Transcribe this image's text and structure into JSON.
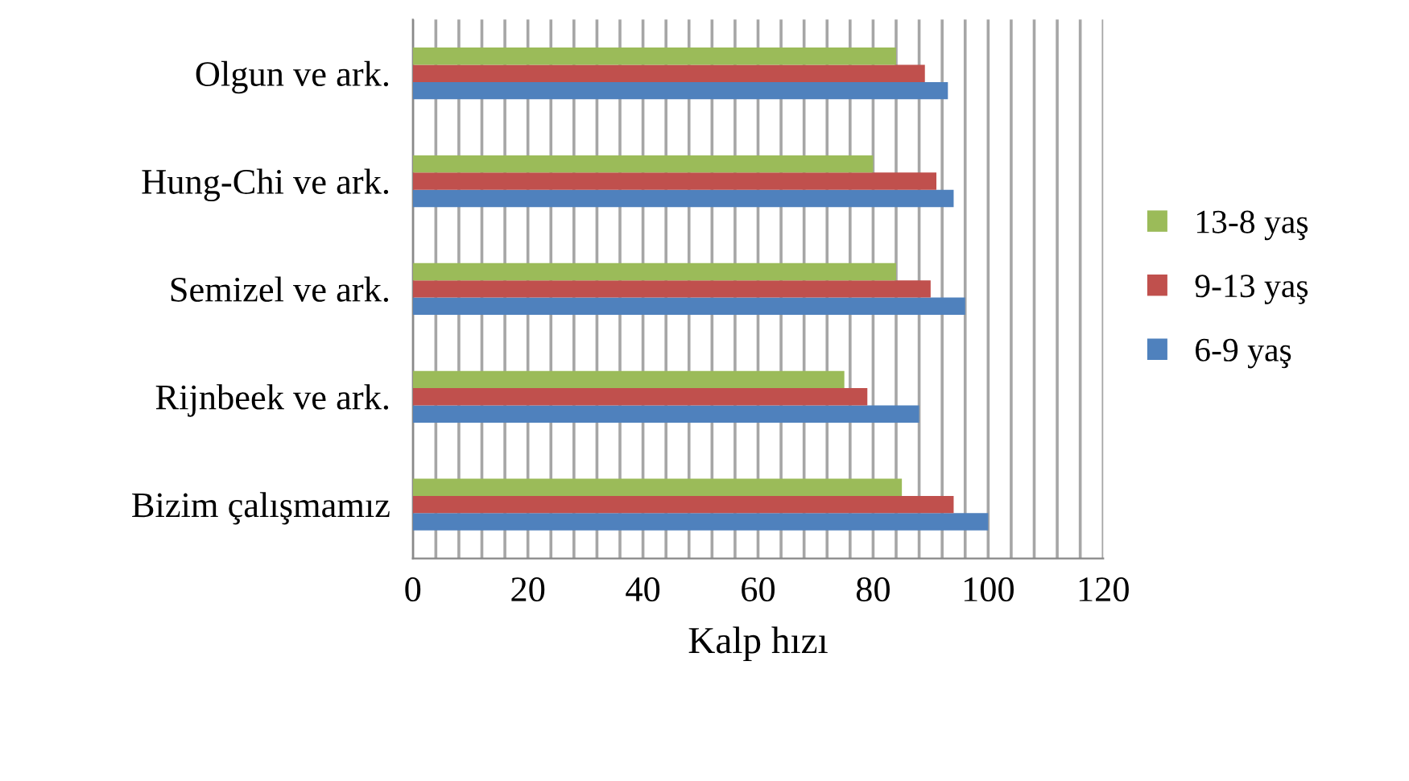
{
  "chart_data": {
    "type": "bar",
    "orientation": "horizontal",
    "xlabel": "Kalp hızı",
    "categories": [
      "Olgun ve ark.",
      "Hung-Chi ve ark.",
      "Semizel ve ark.",
      "Rijnbeek ve ark.",
      "Bizim çalışmamız"
    ],
    "series": [
      {
        "name": "6-9 yaş",
        "color": "#4f81bd",
        "values": [
          93,
          94,
          96,
          88,
          100
        ]
      },
      {
        "name": "9-13 yaş",
        "color": "#c0504d",
        "values": [
          89,
          91,
          90,
          79,
          94
        ]
      },
      {
        "name": "13-8 yaş",
        "color": "#9bbb59",
        "values": [
          84,
          80,
          84,
          75,
          85
        ]
      }
    ],
    "xlim": [
      0,
      120
    ],
    "xticks": [
      0,
      {
        "value": 4,
        "label": null
      },
      {
        "value": 8,
        "label": null
      },
      {
        "value": 12,
        "label": null
      },
      {
        "value": 16,
        "label": null
      },
      20,
      {
        "value": 24,
        "label": null
      },
      {
        "value": 28,
        "label": null
      },
      {
        "value": 32,
        "label": null
      },
      {
        "value": 36,
        "label": null
      },
      40,
      {
        "value": 44,
        "label": null
      },
      {
        "value": 48,
        "label": null
      },
      {
        "value": 52,
        "label": null
      },
      {
        "value": 56,
        "label": null
      },
      60,
      {
        "value": 64,
        "label": null
      },
      {
        "value": 68,
        "label": null
      },
      {
        "value": 72,
        "label": null
      },
      {
        "value": 76,
        "label": null
      },
      80,
      {
        "value": 84,
        "label": null
      },
      {
        "value": 88,
        "label": null
      },
      {
        "value": 92,
        "label": null
      },
      {
        "value": 96,
        "label": null
      },
      100,
      {
        "value": 104,
        "label": null
      },
      {
        "value": 108,
        "label": null
      },
      {
        "value": 112,
        "label": null
      },
      {
        "value": 116,
        "label": null
      },
      120
    ],
    "grid": "x",
    "legend": "right"
  }
}
